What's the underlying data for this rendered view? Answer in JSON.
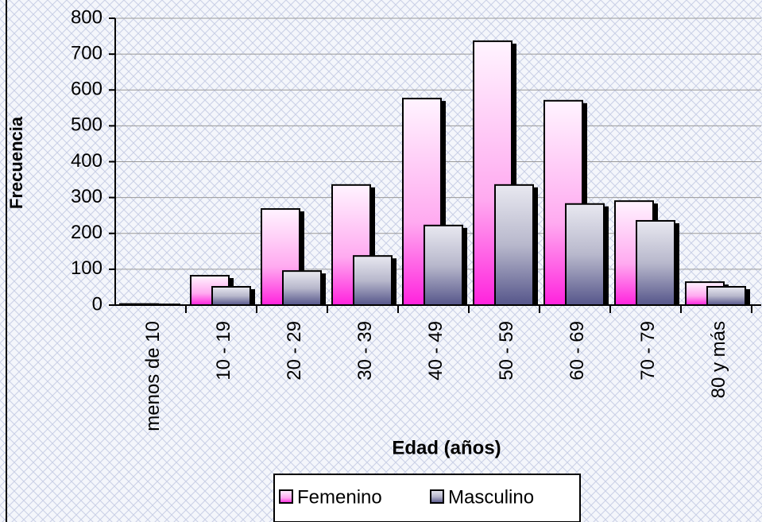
{
  "chart_data": {
    "type": "bar",
    "y_label": "Frecuencia",
    "x_label": "Edad (años)",
    "categories": [
      "menos de 10",
      "10 - 19",
      "20 - 29",
      "30 - 39",
      "40 - 49",
      "50 - 59",
      "60 - 69",
      "70 - 79",
      "80 y más"
    ],
    "series": [
      {
        "name": "Femenino",
        "color": "#ff33dd",
        "values": [
          3,
          82,
          268,
          335,
          576,
          736,
          570,
          290,
          64
        ]
      },
      {
        "name": "Masculino",
        "color": "#5a5a88",
        "values": [
          2,
          51,
          95,
          137,
          222,
          335,
          282,
          235,
          51
        ]
      }
    ],
    "ylim": [
      0,
      800
    ],
    "yticks": [
      0,
      100,
      200,
      300,
      400,
      500,
      600,
      700,
      800
    ],
    "grid": true,
    "legend": "bottom"
  }
}
